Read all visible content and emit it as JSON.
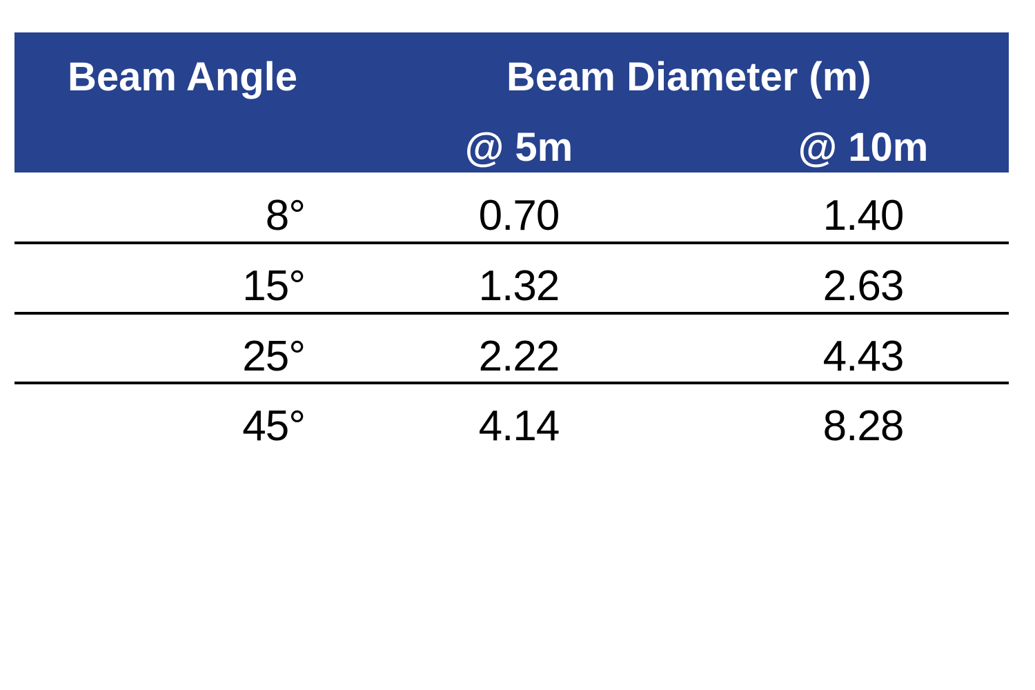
{
  "table": {
    "header": {
      "col1": "Beam Angle",
      "group": "Beam Diameter (m)",
      "sub1": "@ 5m",
      "sub2": "@ 10m"
    },
    "rows": [
      {
        "angle": "8°",
        "d5": "0.70",
        "d10": "1.40"
      },
      {
        "angle": "15°",
        "d5": "1.32",
        "d10": "2.63"
      },
      {
        "angle": "25°",
        "d5": "2.22",
        "d10": "4.43"
      },
      {
        "angle": "45°",
        "d5": "4.14",
        "d10": "8.28"
      }
    ],
    "colors": {
      "header_bg": "#27428f",
      "header_text": "#ffffff",
      "rule": "#000000"
    }
  }
}
